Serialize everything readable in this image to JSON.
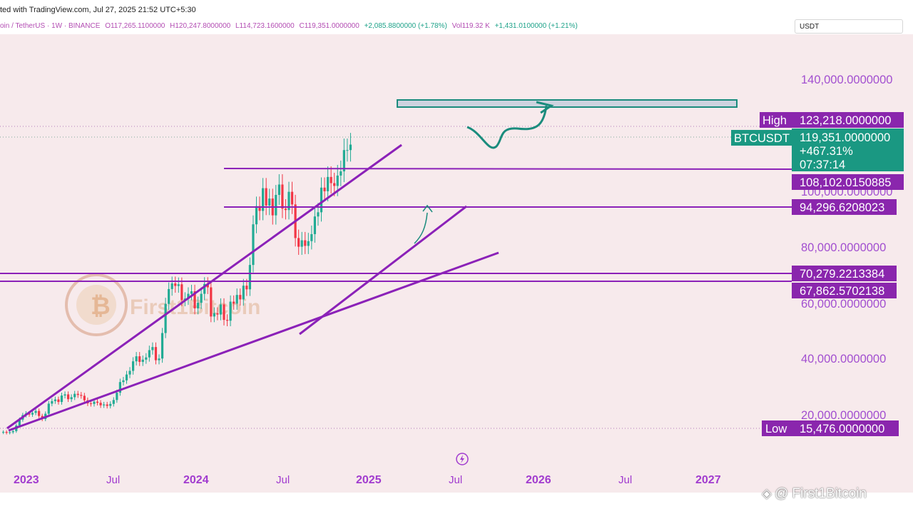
{
  "header": {
    "published": "ted with TradingView.com, Jul 27, 2025 21:52 UTC+5:30"
  },
  "ohlc_bar": {
    "symbol": "oin / TetherUS · 1W · BINANCE",
    "open": "O117,265.1100000",
    "high": "H120,247.8000000",
    "low": "L114,723.1600000",
    "close": "C119,351.0000000",
    "change": "+2,085.8800000 (+1.78%)",
    "volume": "Vol119.32 K",
    "volume_change": "+1,431.0100000 (+1.21%)"
  },
  "currency": "USDT",
  "watermark": {
    "center_text": "First1Bitcoin",
    "footer_text": "@ First1Bitcoin"
  },
  "price_badges": {
    "high_label": "High",
    "high_value": "123,218.0000000",
    "symbol_label": "BTCUSDT",
    "last_price": "119,351.0000000",
    "last_change": "+467.31%",
    "countdown": "07:37:14",
    "resistance_1": "108,102.0150885",
    "support_1": "94,296.6208023",
    "support_2": "70,279.2213384",
    "support_3": "67,862.5702138",
    "low_label": "Low",
    "low_value": "15,476.0000000"
  },
  "colors": {
    "background": "#f7eaec",
    "line_purple": "#8b21b8",
    "badge_purple": "#8a26ad",
    "bull": "#22ab94",
    "bear": "#f23645",
    "projection": "#1a8c7d",
    "target_zone_fill": "#cdd3df",
    "target_zone_stroke": "#1a8c7d",
    "axis_text": "#a24fd0"
  },
  "icons": [
    "lightning-icon",
    "binance-logo-icon",
    "first1bitcoin-logo-icon"
  ],
  "chart_data": {
    "type": "candlestick",
    "interval": "1W",
    "y_axis_ticks": [
      "20,000.0000000",
      "40,000.0000000",
      "60,000.0000000",
      "80,000.0000000",
      "100,000.0000000",
      "140,000.0000000"
    ],
    "x_axis_labels": [
      "2023",
      "Jul",
      "2024",
      "Jul",
      "2025",
      "Jul",
      "2026",
      "Jul",
      "2027"
    ],
    "ylim": [
      6000,
      156000
    ],
    "horizontal_levels": [
      108102.0150885,
      94296.6208023,
      70279.2213384,
      67862.5702138
    ],
    "high": 123218,
    "low": 15476,
    "last": 119351,
    "target_zone": [
      128500,
      130000
    ],
    "candle_closes": [
      16800,
      16500,
      16700,
      17100,
      19100,
      21200,
      22800,
      23400,
      23000,
      23600,
      24300,
      22500,
      21400,
      23300,
      26900,
      27800,
      28400,
      27500,
      29800,
      30200,
      28500,
      29200,
      30400,
      30000,
      29700,
      28100,
      27000,
      26800,
      27600,
      27200,
      26300,
      26600,
      26100,
      26800,
      28200,
      30800,
      34600,
      35200,
      37300,
      38600,
      42000,
      43800,
      41800,
      42600,
      43400,
      46000,
      47100,
      42400,
      43000,
      52100,
      62500,
      67800,
      69800,
      68900,
      69500,
      63900,
      64400,
      66100,
      67000,
      60900,
      62900,
      66100,
      69600,
      68400,
      58000,
      59200,
      58700,
      62300,
      56800,
      56500,
      63300,
      62600,
      65700,
      64100,
      69000,
      67700,
      76400,
      90900,
      97400,
      95700,
      103800,
      97600,
      100100,
      94100,
      101400,
      105100,
      96500,
      96000,
      102500,
      98000,
      86000,
      82900,
      85200,
      83200,
      84900,
      87400,
      93700,
      95200,
      104000,
      102700,
      107800,
      105600,
      104600,
      108300,
      109800,
      117400,
      117400,
      119351
    ],
    "start_week": "2022-12-26"
  }
}
